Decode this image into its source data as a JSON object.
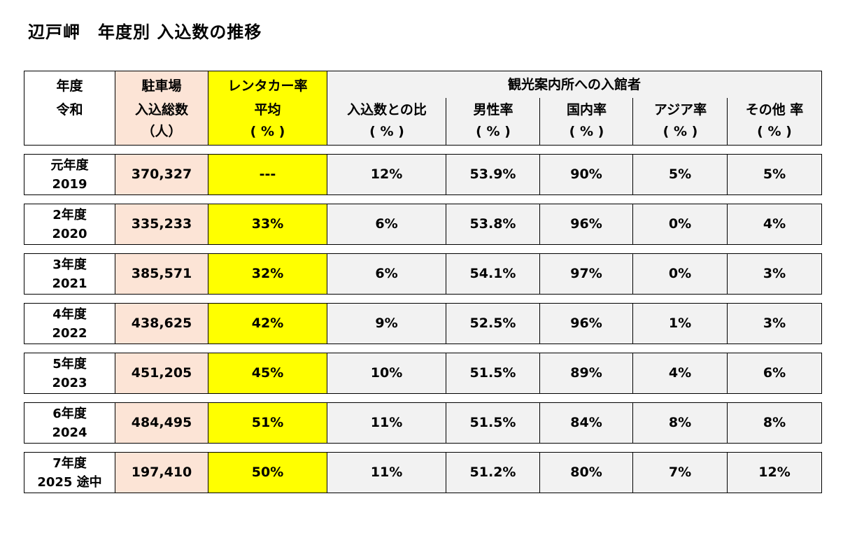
{
  "title": "辺戸岬　年度別 入込数の推移",
  "header": {
    "year": [
      "年度",
      "令和",
      ""
    ],
    "parking": [
      "駐車場",
      "入込総数",
      "（人）"
    ],
    "rental": [
      "レンタカー率",
      "平均",
      "( % )"
    ],
    "visitor_center": "観光案内所への入館者",
    "ratio": [
      "入込数との比",
      "( % )"
    ],
    "male": [
      "男性率",
      "( % )"
    ],
    "domestic": [
      "国内率",
      "( % )"
    ],
    "asia": [
      "アジア率",
      "( % )"
    ],
    "other": [
      "その他 率",
      "( % )"
    ]
  },
  "rows": [
    {
      "year_label": "元年度",
      "year": "2019",
      "parking": "370,327",
      "rental": "---",
      "ratio": "12%",
      "male": "53.9%",
      "domestic": "90%",
      "asia": "5%",
      "other": "5%"
    },
    {
      "year_label": "2年度",
      "year": "2020",
      "parking": "335,233",
      "rental": "33%",
      "ratio": "6%",
      "male": "53.8%",
      "domestic": "96%",
      "asia": "0%",
      "other": "4%"
    },
    {
      "year_label": "3年度",
      "year": "2021",
      "parking": "385,571",
      "rental": "32%",
      "ratio": "6%",
      "male": "54.1%",
      "domestic": "97%",
      "asia": "0%",
      "other": "3%"
    },
    {
      "year_label": "4年度",
      "year": "2022",
      "parking": "438,625",
      "rental": "42%",
      "ratio": "9%",
      "male": "52.5%",
      "domestic": "96%",
      "asia": "1%",
      "other": "3%"
    },
    {
      "year_label": "5年度",
      "year": "2023",
      "parking": "451,205",
      "rental": "45%",
      "ratio": "10%",
      "male": "51.5%",
      "domestic": "89%",
      "asia": "4%",
      "other": "6%"
    },
    {
      "year_label": "6年度",
      "year": "2024",
      "parking": "484,495",
      "rental": "51%",
      "ratio": "11%",
      "male": "51.5%",
      "domestic": "84%",
      "asia": "8%",
      "other": "8%"
    },
    {
      "year_label": "7年度",
      "year": "2025 途中",
      "parking": "197,410",
      "rental": "50%",
      "ratio": "11%",
      "male": "51.2%",
      "domestic": "80%",
      "asia": "7%",
      "other": "12%"
    }
  ],
  "colors": {
    "parking_bg": "#fce4d6",
    "rental_bg": "#ffff00",
    "visitor_bg": "#f2f2f2",
    "year_bg": "#ffffff"
  }
}
